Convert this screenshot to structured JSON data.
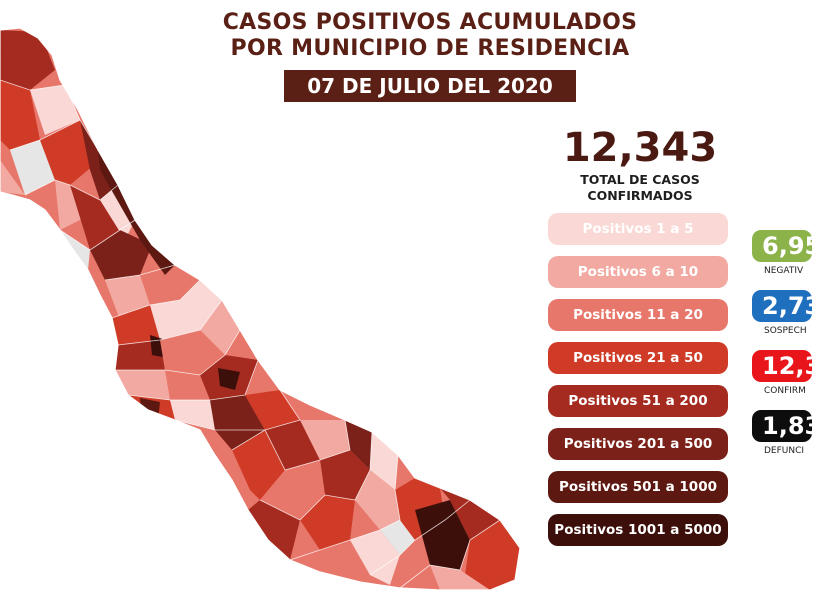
{
  "header": {
    "title_line1": "CASOS POSITIVOS ACUMULADOS",
    "title_line2": "POR MUNICIPIO DE RESIDENCIA",
    "date": "07 DE JULIO DEL 2020"
  },
  "total": {
    "value": "12,343",
    "label_line1": "TOTAL DE CASOS",
    "label_line2": "CONFIRMADOS"
  },
  "legend": [
    {
      "label": "Positivos 1 a 5",
      "color": "#f9d8d5"
    },
    {
      "label": "Positivos 6 a 10",
      "color": "#f2a9a1"
    },
    {
      "label": "Positivos 11 a 20",
      "color": "#e8776b"
    },
    {
      "label": "Positivos 21 a 50",
      "color": "#cf3b27"
    },
    {
      "label": "Positivos 51 a 200",
      "color": "#a52a1f"
    },
    {
      "label": "Positivos 201 a 500",
      "color": "#7c2119"
    },
    {
      "label": "Positivos 501 a 1000",
      "color": "#5c1811"
    },
    {
      "label": "Positivos 1001 a 5000",
      "color": "#3d0f0a"
    }
  ],
  "stats": [
    {
      "value": "6,95",
      "label": "NEGATIV",
      "color": "#8cb24a"
    },
    {
      "value": "2,73",
      "label": "SOSPECH",
      "color": "#1f6fbf"
    },
    {
      "value": "12,3",
      "label": "CONFIRM",
      "color": "#e8151a"
    },
    {
      "value": "1,83",
      "label": "DEFUNCI",
      "color": "#0d0d0d"
    }
  ],
  "colors": {
    "map_none": "#e6e6e6",
    "title": "#5a2015"
  }
}
